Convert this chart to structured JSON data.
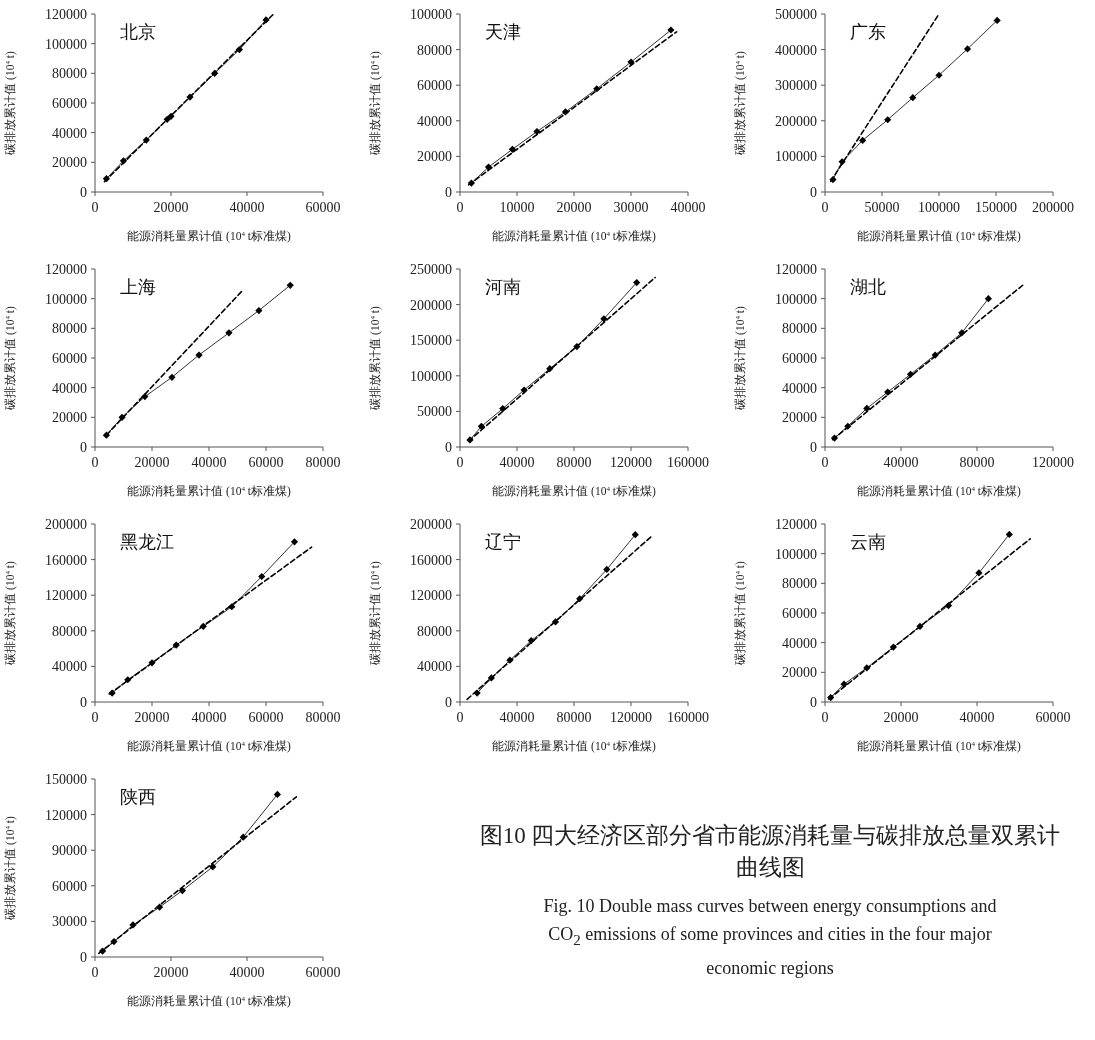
{
  "chart_data": [
    {
      "type": "line",
      "title": "北京",
      "xlabel": "能源消耗量累计值 (10$^{4}$ t标准煤)",
      "ylabel": "碳排放累计值 (10$^{4}$ t)",
      "xlim": [
        0,
        60000
      ],
      "xticks": [
        0,
        20000,
        40000,
        60000
      ],
      "ylim": [
        0,
        120000
      ],
      "yticks": [
        0,
        20000,
        40000,
        60000,
        80000,
        100000,
        120000
      ],
      "series": [
        {
          "color": "#000000",
          "marker": "diamond",
          "line_style": "solid",
          "x": [
            3000,
            7500,
            13500,
            19000,
            20000,
            25000,
            31500,
            38000,
            45000
          ],
          "values": [
            9000,
            21000,
            35000,
            49000,
            51000,
            64000,
            80000,
            96000,
            116000
          ]
        },
        {
          "color": "#000000",
          "marker": "none",
          "line_style": "dashed",
          "x": [
            2500,
            47000
          ],
          "values": [
            7000,
            120000
          ]
        }
      ]
    },
    {
      "type": "line",
      "title": "天津",
      "xlabel": "能源消耗量累计值 (10$^{4}$ t标准煤)",
      "ylabel": "碳排放累计值 (10$^{4}$ t)",
      "xlim": [
        0,
        40000
      ],
      "xticks": [
        0,
        10000,
        20000,
        30000,
        40000
      ],
      "ylim": [
        0,
        100000
      ],
      "yticks": [
        0,
        20000,
        40000,
        60000,
        80000,
        100000
      ],
      "series": [
        {
          "color": "#000000",
          "marker": "diamond",
          "line_style": "solid",
          "x": [
            2000,
            5000,
            9200,
            13500,
            18500,
            24000,
            30000,
            37000
          ],
          "values": [
            5000,
            14000,
            24000,
            34000,
            45000,
            58000,
            73000,
            91000
          ]
        },
        {
          "color": "#000000",
          "marker": "none",
          "line_style": "dashed",
          "x": [
            1500,
            38000
          ],
          "values": [
            4000,
            90000
          ]
        }
      ]
    },
    {
      "type": "line",
      "title": "广东",
      "xlabel": "能源消耗量累计值 (10$^{4}$ t标准煤)",
      "ylabel": "碳排放累计值 (10$^{4}$ t)",
      "xlim": [
        0,
        200000
      ],
      "xticks": [
        0,
        50000,
        100000,
        150000,
        200000
      ],
      "ylim": [
        0,
        500000
      ],
      "yticks": [
        0,
        100000,
        200000,
        300000,
        400000,
        500000
      ],
      "series": [
        {
          "color": "#000000",
          "marker": "diamond",
          "line_style": "solid",
          "x": [
            7000,
            15000,
            33000,
            55000,
            77000,
            100000,
            125000,
            151000
          ],
          "values": [
            35000,
            85000,
            145000,
            203000,
            265000,
            328000,
            402000,
            482000
          ]
        },
        {
          "color": "#000000",
          "marker": "none",
          "line_style": "dashed",
          "x": [
            5000,
            100000
          ],
          "values": [
            30000,
            500000
          ]
        }
      ]
    },
    {
      "type": "line",
      "title": "上海",
      "xlabel": "能源消耗量累计值 (10$^{4}$ t标准煤)",
      "ylabel": "碳排放累计值 (10$^{4}$ t)",
      "xlim": [
        0,
        80000
      ],
      "xticks": [
        0,
        20000,
        40000,
        60000,
        80000
      ],
      "ylim": [
        0,
        120000
      ],
      "yticks": [
        0,
        20000,
        40000,
        60000,
        80000,
        100000,
        120000
      ],
      "series": [
        {
          "color": "#000000",
          "marker": "diamond",
          "line_style": "solid",
          "x": [
            4000,
            9500,
            17500,
            27000,
            36500,
            47000,
            57500,
            68500
          ],
          "values": [
            8000,
            20000,
            34000,
            47000,
            62000,
            77000,
            92000,
            109000
          ]
        },
        {
          "color": "#000000",
          "marker": "none",
          "line_style": "dashed",
          "x": [
            4000,
            52000
          ],
          "values": [
            8000,
            106000
          ]
        }
      ]
    },
    {
      "type": "line",
      "title": "河南",
      "xlabel": "能源消耗量累计值 (10$^{4}$ t标准煤)",
      "ylabel": "碳排放累计值 (10$^{4}$ t)",
      "xlim": [
        0,
        160000
      ],
      "xticks": [
        0,
        40000,
        80000,
        120000,
        160000
      ],
      "ylim": [
        0,
        250000
      ],
      "yticks": [
        0,
        50000,
        100000,
        150000,
        200000,
        250000
      ],
      "series": [
        {
          "color": "#000000",
          "marker": "diamond",
          "line_style": "solid",
          "x": [
            7000,
            15000,
            30000,
            45000,
            63000,
            82000,
            101000,
            124000
          ],
          "values": [
            10000,
            29000,
            54000,
            80000,
            110000,
            141000,
            180000,
            231000
          ]
        },
        {
          "color": "#000000",
          "marker": "none",
          "line_style": "dashed",
          "x": [
            6000,
            137000
          ],
          "values": [
            8000,
            238000
          ]
        }
      ]
    },
    {
      "type": "line",
      "title": "湖北",
      "xlabel": "能源消耗量累计值 (10$^{4}$ t标准煤)",
      "ylabel": "碳排放累计值 (10$^{4}$ t)",
      "xlim": [
        0,
        120000
      ],
      "xticks": [
        0,
        40000,
        80000,
        120000
      ],
      "ylim": [
        0,
        120000
      ],
      "yticks": [
        0,
        20000,
        40000,
        60000,
        80000,
        100000,
        120000
      ],
      "series": [
        {
          "color": "#000000",
          "marker": "diamond",
          "line_style": "solid",
          "x": [
            5000,
            12000,
            22000,
            33000,
            45000,
            58000,
            72000,
            86000
          ],
          "values": [
            6000,
            14000,
            26000,
            37000,
            49000,
            62000,
            77000,
            100000
          ]
        },
        {
          "color": "#000000",
          "marker": "none",
          "line_style": "dashed",
          "x": [
            4000,
            104000
          ],
          "values": [
            5000,
            109000
          ]
        }
      ]
    },
    {
      "type": "line",
      "title": "黑龙江",
      "xlabel": "能源消耗量累计值 (10$^{4}$ t标准煤)",
      "ylabel": "碳排放累计值 (10$^{4}$ t)",
      "xlim": [
        0,
        80000
      ],
      "xticks": [
        0,
        20000,
        40000,
        60000,
        80000
      ],
      "ylim": [
        0,
        200000
      ],
      "yticks": [
        0,
        40000,
        80000,
        120000,
        160000,
        200000
      ],
      "series": [
        {
          "color": "#000000",
          "marker": "diamond",
          "line_style": "solid",
          "x": [
            6000,
            11500,
            20000,
            28500,
            38000,
            48000,
            58500,
            70000
          ],
          "values": [
            10000,
            25000,
            44000,
            64000,
            85000,
            107000,
            141000,
            180000
          ]
        },
        {
          "color": "#000000",
          "marker": "none",
          "line_style": "dashed",
          "x": [
            5000,
            76000
          ],
          "values": [
            9000,
            174000
          ]
        }
      ]
    },
    {
      "type": "line",
      "title": "辽宁",
      "xlabel": "能源消耗量累计值 (10$^{4}$ t标准煤)",
      "ylabel": "碳排放累计值 (10$^{4}$ t)",
      "xlim": [
        0,
        160000
      ],
      "xticks": [
        0,
        40000,
        80000,
        120000,
        160000
      ],
      "ylim": [
        0,
        200000
      ],
      "yticks": [
        0,
        40000,
        80000,
        120000,
        160000,
        200000
      ],
      "series": [
        {
          "color": "#000000",
          "marker": "diamond",
          "line_style": "solid",
          "x": [
            12000,
            22000,
            35000,
            50000,
            67000,
            84000,
            103000,
            123000
          ],
          "values": [
            10000,
            27000,
            47000,
            69000,
            90000,
            116000,
            149000,
            188000
          ]
        },
        {
          "color": "#000000",
          "marker": "none",
          "line_style": "dashed",
          "x": [
            5000,
            135000
          ],
          "values": [
            3000,
            187000
          ]
        }
      ]
    },
    {
      "type": "line",
      "title": "云南",
      "xlabel": "能源消耗量累计值 (10$^{4}$ t标准煤)",
      "ylabel": "碳排放累计值 (10$^{4}$ t)",
      "xlim": [
        0,
        60000
      ],
      "xticks": [
        0,
        20000,
        40000,
        60000
      ],
      "ylim": [
        0,
        120000
      ],
      "yticks": [
        0,
        20000,
        40000,
        60000,
        80000,
        100000,
        120000
      ],
      "series": [
        {
          "color": "#000000",
          "marker": "diamond",
          "line_style": "solid",
          "x": [
            1500,
            5000,
            11000,
            18000,
            25000,
            32500,
            40500,
            48500
          ],
          "values": [
            3000,
            12000,
            23000,
            37000,
            51000,
            65000,
            87000,
            113000
          ]
        },
        {
          "color": "#000000",
          "marker": "none",
          "line_style": "dashed",
          "x": [
            1000,
            54000
          ],
          "values": [
            2000,
            110000
          ]
        }
      ]
    },
    {
      "type": "line",
      "title": "陕西",
      "xlabel": "能源消耗量累计值 (10$^{4}$ t标准煤)",
      "ylabel": "碳排放累计值 (10$^{4}$ t)",
      "xlim": [
        0,
        60000
      ],
      "xticks": [
        0,
        20000,
        40000,
        60000
      ],
      "ylim": [
        0,
        150000
      ],
      "yticks": [
        0,
        30000,
        60000,
        90000,
        120000,
        150000
      ],
      "annotations": [
        "图10  四大经济区部分省市能源消耗量与碳排放总量双累计曲线图",
        "Fig. 10  Double mass curves between energy consumptions and CO$_{2}$ emissions of some provinces and cities in the four major economic regions"
      ],
      "series": [
        {
          "color": "#000000",
          "marker": "diamond",
          "line_style": "solid",
          "x": [
            2000,
            5000,
            10000,
            17000,
            23000,
            31000,
            39000,
            48000
          ],
          "values": [
            5000,
            13000,
            27000,
            42000,
            56000,
            76000,
            101000,
            137000
          ]
        },
        {
          "color": "#000000",
          "marker": "none",
          "line_style": "dashed",
          "x": [
            1000,
            53000
          ],
          "values": [
            3000,
            135000
          ]
        }
      ]
    }
  ]
}
